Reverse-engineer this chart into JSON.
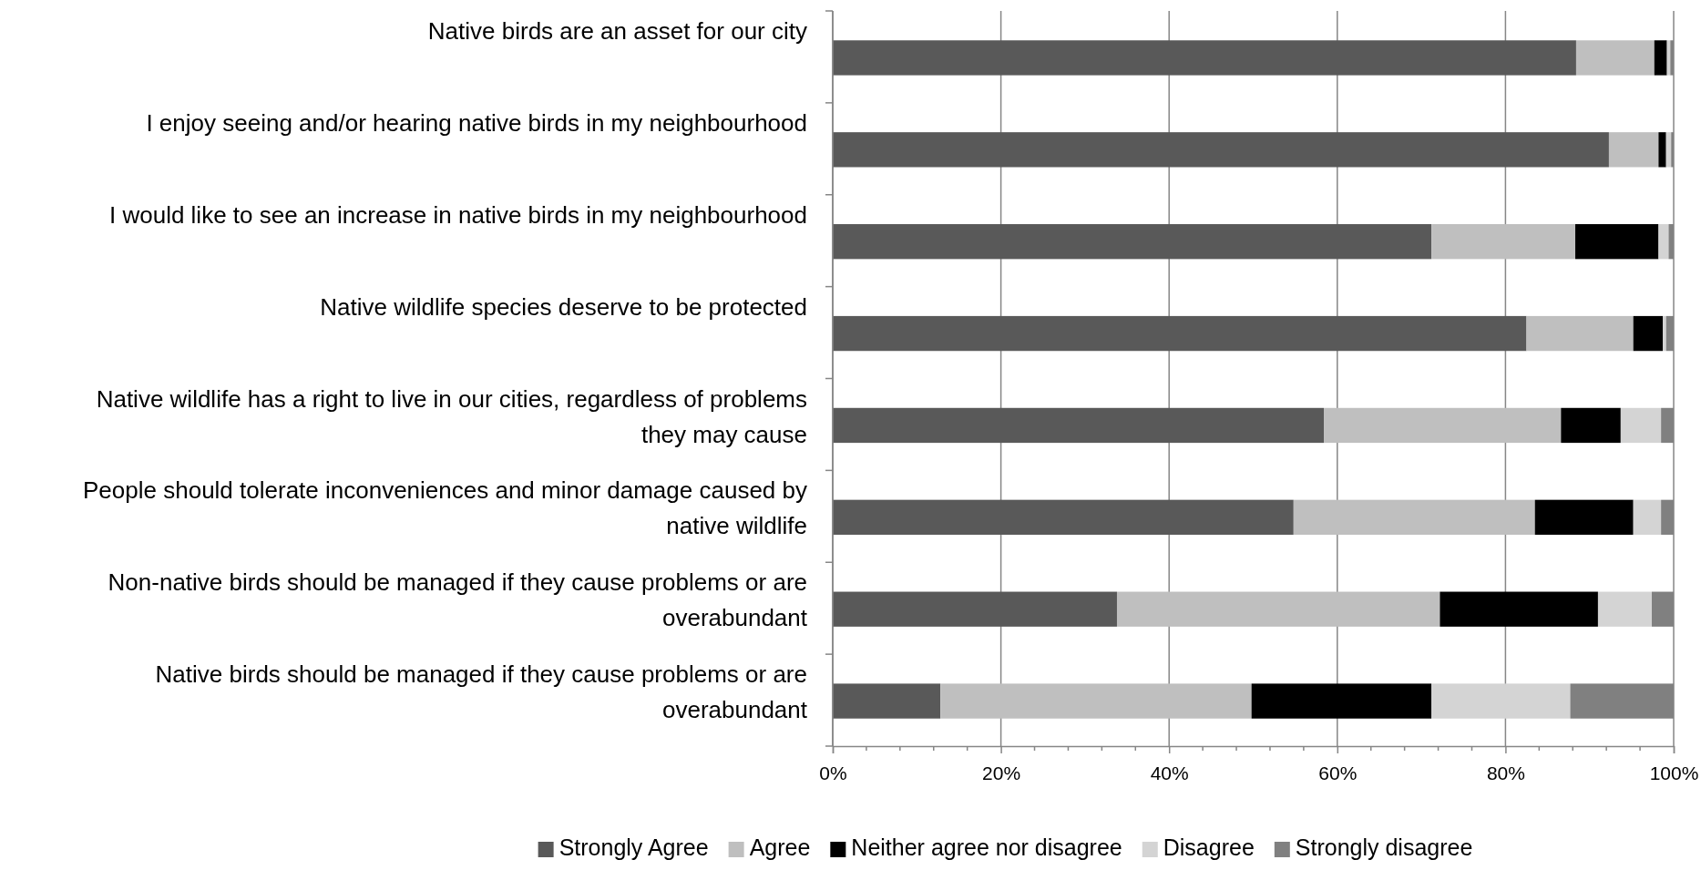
{
  "chart_data": {
    "type": "bar",
    "orientation": "horizontal",
    "stacked": true,
    "categories": [
      "Native birds are an asset for our city",
      "I enjoy seeing and/or hearing native birds in my neighbourhood",
      "I would like to see an increase in native birds in my neighbourhood",
      "Native wildlife species deserve to be protected",
      "Native wildlife has a right to live in our cities, regardless of problems they may cause",
      "People should tolerate inconveniences and minor damage caused by native wildlife",
      "Non-native birds should be managed if they cause problems or are overabundant",
      "Native birds should be managed if they cause problems or are overabundant"
    ],
    "series": [
      {
        "name": "Strongly Agree",
        "color": "#595959",
        "values": [
          88.4,
          92.3,
          71.2,
          82.5,
          58.4,
          54.8,
          33.8,
          12.8
        ]
      },
      {
        "name": "Agree",
        "color": "#bfbfbf",
        "values": [
          9.3,
          5.9,
          17.1,
          12.7,
          28.2,
          28.7,
          38.4,
          37.0
        ]
      },
      {
        "name": "Neither agree nor disagree",
        "color": "#000000",
        "values": [
          1.5,
          0.9,
          9.9,
          3.5,
          7.1,
          11.7,
          18.8,
          21.4
        ]
      },
      {
        "name": "Disagree",
        "color": "#d4d4d4",
        "values": [
          0.4,
          0.6,
          1.2,
          0.4,
          4.8,
          3.3,
          6.4,
          16.5
        ]
      },
      {
        "name": "Strongly disagree",
        "color": "#808080",
        "values": [
          0.4,
          0.3,
          0.6,
          0.9,
          1.5,
          1.5,
          2.6,
          12.3
        ]
      }
    ],
    "xlim": [
      0,
      100
    ],
    "xticks": [
      {
        "value": 0,
        "label": "0%"
      },
      {
        "value": 20,
        "label": "20%"
      },
      {
        "value": 40,
        "label": "40%"
      },
      {
        "value": 60,
        "label": "60%"
      },
      {
        "value": 80,
        "label": "80%"
      },
      {
        "value": 100,
        "label": "100%"
      }
    ],
    "grid": "x",
    "legend": "bottom"
  }
}
